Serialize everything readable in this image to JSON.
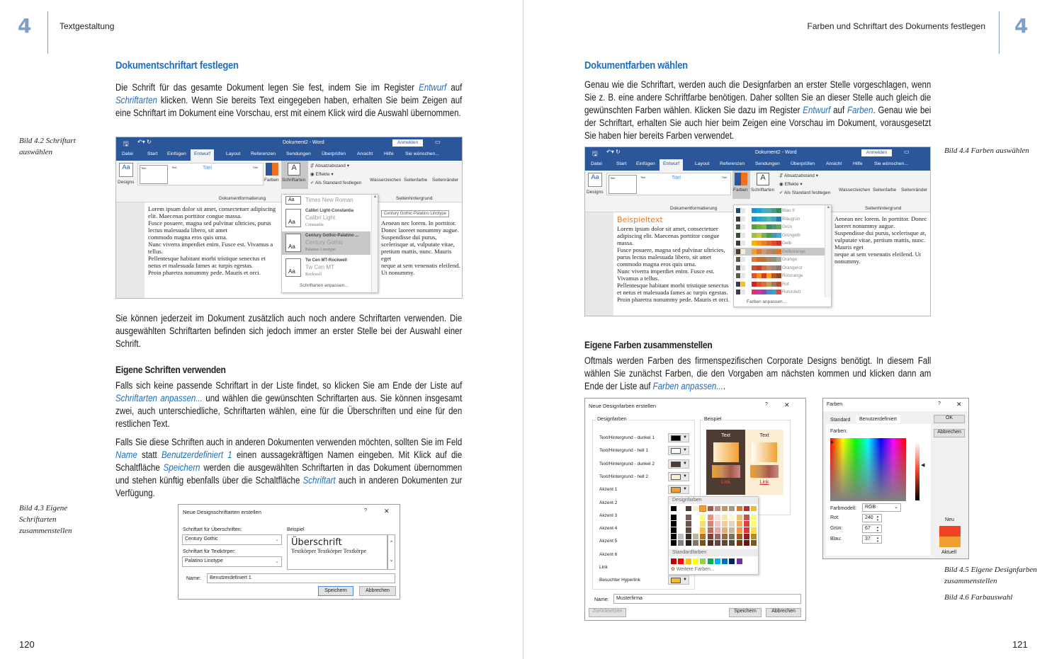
{
  "left_page": {
    "chapter_number": "4",
    "running_head": "Textgestaltung",
    "page_number": "120",
    "heading1": "Dokumentschriftart festlegen",
    "para1": [
      {
        "t": "Die Schrift für das gesamte Dokument legen Sie fest, indem Sie im Register "
      },
      {
        "t": "Entwurf",
        "link": true
      },
      {
        "t": " auf "
      },
      {
        "t": "Schriftarten",
        "link": true
      },
      {
        "t": " klicken. Wenn Sie bereits Text eingegeben haben, erhalten Sie beim Zeigen auf eine Schriftart im Dokument eine Vorschau, erst mit einem Klick wird die Auswahl übernommen."
      }
    ],
    "caption_4_2": "Bild 4.2 Schriftart auswählen",
    "para2": [
      {
        "t": "Sie können jederzeit im Dokument zusätzlich auch noch andere Schriftarten verwenden. Die ausgewählten Schriftarten befinden sich jedoch immer an erster Stelle bei der Auswahl einer Schrift."
      }
    ],
    "heading2": "Eigene Schriften verwenden",
    "para3": [
      {
        "t": "Falls sich keine passende Schriftart in der Liste findet, so klicken Sie am Ende der Liste auf "
      },
      {
        "t": "Schriftarten anpassen...",
        "link": true
      },
      {
        "t": " und wählen die gewünschten Schriftarten aus. Sie können insgesamt zwei, auch unterschiedliche, Schriftarten wählen, eine für die Überschriften und eine für den restlichen Text."
      }
    ],
    "para4": [
      {
        "t": "Falls Sie diese Schriften auch in anderen Dokumenten verwenden möchten, sollten Sie im Feld "
      },
      {
        "t": "Name",
        "link": true
      },
      {
        "t": " statt "
      },
      {
        "t": "Benutzerdefiniert 1",
        "link": true
      },
      {
        "t": " einen aussagekräftigen Namen eingeben. Mit Klick auf die Schaltfläche "
      },
      {
        "t": "Speichern",
        "link": true
      },
      {
        "t": " werden die ausgewählten Schriftarten in das Dokument übernommen und stehen künftig ebenfalls über die Schaltfläche "
      },
      {
        "t": "Schriftart",
        "link": true
      },
      {
        "t": " auch in anderen Dokumenten zur Verfügung."
      }
    ],
    "caption_4_3": "Bild 4.3 Eigene Schriftarten zusammenstellen"
  },
  "right_page": {
    "chapter_number": "4",
    "running_head": "Farben und Schriftart des Dokuments festlegen",
    "page_number": "121",
    "heading1": "Dokumentfarben wählen",
    "para1": [
      {
        "t": "Genau wie die Schriftart, werden auch die Designfarben an erster Stelle vorgeschlagen, wenn Sie z. B. eine andere Schriftfarbe benötigen. Daher sollten Sie an dieser Stelle auch gleich die gewünschten Farben wählen. Klicken Sie dazu im Register "
      },
      {
        "t": "Entwurf",
        "link": true
      },
      {
        "t": " auf "
      },
      {
        "t": "Farben",
        "link": true
      },
      {
        "t": ". Genau wie bei der Schriftart, erhalten Sie auch hier beim Zeigen eine Vorschau im Dokument, vorausgesetzt Sie haben hier bereits Farben verwendet."
      }
    ],
    "caption_4_4": "Bild 4.4 Farben auswählen",
    "heading2": "Eigene Farben zusammenstellen",
    "para2": [
      {
        "t": "Oftmals werden Farben des firmenspezifischen Corporate Designs benötigt. In diesem Fall wählen Sie zunächst Farben, die den Vorgaben am nächsten kommen und klicken dann am Ende der Liste auf "
      },
      {
        "t": "Farben anpassen...",
        "link": true
      },
      {
        "t": "."
      }
    ],
    "caption_4_5": "Bild 4.5 Eigene Designfarben zusammenstellen",
    "caption_4_6": "Bild 4.6 Farbauswahl"
  },
  "word": {
    "title": "Dokument2 - Word",
    "signin": "Anmelden",
    "tabs": [
      "Datei",
      "Start",
      "Einfügen",
      "Entwurf",
      "Layout",
      "Referenzen",
      "Sendungen",
      "Überprüfen",
      "Ansicht",
      "Hilfe",
      "Sie wünschen..."
    ],
    "active_tab": "Entwurf",
    "ribbon": {
      "designs": "Designs",
      "farben": "Farben",
      "schriftarten": "Schriftarten",
      "absatzabstand": "Absatzabstand",
      "effekte": "Effekte",
      "standard": "Als Standard festlegen",
      "wasserzeichen": "Wasserzeichen",
      "seitenfarbe": "Seitenfarbe",
      "seitenraender": "Seitenränder",
      "group1": "Dokumentformatierung",
      "group2": "Seitenhintergrund",
      "gallery_title": "Titel"
    },
    "doc_lines": [
      "Lorem ipsum dolor sit amet, consectetuer adipiscing elit. Maecenas porttitor congue massa.",
      "Fusce posuere, magna sed pulvinar ultricies, purus lectus malesuada libero, sit amet",
      "commodo magna eros quis urna.",
      "Nunc viverra imperdiet enim. Fusce est. Vivamus a tellus.",
      "Pellentesque habitant morbi tristique senectus et netus et malesuada fames ac turpis egestas.",
      "Proin pharetra nonummy pede. Mauris et orci.",
      "Aenean nec lorem. In porttitor. Donec laoreet nonummy augue.",
      "Suspendisse dui purus, scelerisque at, vulputate vitae, pretium mattis, nunc. Mauris eget",
      "neque at sem venenatis eleifend. Ut nonummy."
    ],
    "fonts_menu": {
      "items": [
        {
          "name": "",
          "heading": "Times New Roman",
          "body": ""
        },
        {
          "name": "Calibri Light-Constantia",
          "heading": "Calibri Light",
          "body": "Constantia"
        },
        {
          "name": "Century Gothic-Palatino ...",
          "heading": "Century Gothic",
          "body": "Palatino Linotype",
          "selected": true
        },
        {
          "name": "Tw Cen MT-Rockwell",
          "heading": "Tw Cen MT",
          "body": "Rockwell"
        }
      ],
      "sample": "Aa",
      "customize": "Schriftarten anpassen...",
      "tooltip": "Century Gothic-Palatino Linotype"
    },
    "sample_heading": "Beispieltext",
    "colors_menu": {
      "items": [
        {
          "name": "Blau II",
          "colors": [
            "#1c4a73",
            "#e6e6e6",
            "#1f8fd6",
            "#25a0d0",
            "#4aa8c9",
            "#5aa9a0",
            "#4a9a8a",
            "#3b8a5a"
          ]
        },
        {
          "name": "Blaugrün",
          "colors": [
            "#3a3a3a",
            "#e6e6e6",
            "#1f8fd6",
            "#2aa2c8",
            "#38b0b8",
            "#56b9a8",
            "#4aa0b8",
            "#2a7aa0"
          ]
        },
        {
          "name": "Grün",
          "colors": [
            "#445a44",
            "#e6e6e6",
            "#5aa03a",
            "#6eb044",
            "#8ab83a",
            "#3a8a60",
            "#4a9a70",
            "#6aa060"
          ]
        },
        {
          "name": "Grüngelb",
          "colors": [
            "#3a4a3a",
            "#e6e6e6",
            "#9ac23a",
            "#c8c83a",
            "#7ab050",
            "#4aa040",
            "#3a9aba",
            "#4aa8d8"
          ]
        },
        {
          "name": "Gelb",
          "colors": [
            "#3a3a3a",
            "#e6e6e6",
            "#f4b400",
            "#f09a20",
            "#e88030",
            "#d86a2a",
            "#e04a2a",
            "#c8342a"
          ]
        },
        {
          "name": "Gelborange",
          "colors": [
            "#4a3a30",
            "#f4ecd8",
            "#f0a030",
            "#d87a3a",
            "#c89a7a",
            "#b88a6a",
            "#a08a6a",
            "#d8782a"
          ],
          "selected": true
        },
        {
          "name": "Orange",
          "colors": [
            "#5a5a4a",
            "#e6e6e6",
            "#e87a2a",
            "#d86a2a",
            "#b8783a",
            "#a88a6a",
            "#8a9a7a",
            "#a0a8a0"
          ]
        },
        {
          "name": "Orangerot",
          "colors": [
            "#5a5a5a",
            "#e6e6e6",
            "#d84a2a",
            "#c83a2a",
            "#e06a3a",
            "#c88a6a",
            "#a08a7a",
            "#887a7a"
          ]
        },
        {
          "name": "Rotorange",
          "colors": [
            "#5a5a5a",
            "#e6e6e6",
            "#e0502a",
            "#f08a2a",
            "#d8342a",
            "#f0a02a",
            "#b8542a",
            "#884a2a"
          ]
        },
        {
          "name": "Rot",
          "colors": [
            "#3a3a4a",
            "#f0c030",
            "#c82a2a",
            "#e0502a",
            "#d86a4a",
            "#c89a5a",
            "#9a7a5a",
            "#b84a3a"
          ]
        },
        {
          "name": "Rotviolett",
          "colors": [
            "#3a3a4a",
            "#e6e6e6",
            "#e0346a",
            "#c83aa0",
            "#8a4ab0",
            "#4a8ad8",
            "#3aa0c8",
            "#d84a4a"
          ]
        }
      ],
      "customize": "Farben anpassen..."
    }
  },
  "fonts_dialog": {
    "title": "Neue Designschriftarten erstellen",
    "help": "?",
    "close": "✕",
    "heading_label": "Schriftart für Überschriften:",
    "heading_value": "Century Gothic",
    "body_label": "Schriftart für Textkörper:",
    "body_value": "Palatino Linotype",
    "sample_label": "Beispiel",
    "sample_heading": "Überschrift",
    "sample_body": "Textkörper Textkörper Textkörpe",
    "name_label": "Name:",
    "name_value": "Benutzerdefiniert 1",
    "save": "Speichern",
    "cancel": "Abbrechen"
  },
  "colors_dialog": {
    "title": "Neue Designfarben erstellen",
    "help": "?",
    "close": "✕",
    "group_label": "Designfarben",
    "rows": [
      {
        "label": "Text/Hintergrund - dunkel 1",
        "color": "#000000"
      },
      {
        "label": "Text/Hintergrund - hell 1",
        "color": "#ffffff"
      },
      {
        "label": "Text/Hintergrund - dunkel 2",
        "color": "#4e3b31"
      },
      {
        "label": "Text/Hintergrund - hell 2",
        "color": "#fbeed3"
      },
      {
        "label": "Akzent 1",
        "color": "#f0a030"
      },
      {
        "label": "Akzent 2",
        "color": ""
      },
      {
        "label": "Akzent 3",
        "color": ""
      },
      {
        "label": "Akzent 4",
        "color": ""
      },
      {
        "label": "Akzent 5",
        "color": ""
      },
      {
        "label": "Akzent 6",
        "color": ""
      },
      {
        "label": "Link",
        "color": ""
      },
      {
        "label": "Besuchter Hyperlink",
        "color": "#f4b830"
      }
    ],
    "sample_label": "Beispiel",
    "sample_text": "Text",
    "sample_link": "Link",
    "popup": {
      "theme_label": "Designfarben",
      "theme_colors": [
        "#000000",
        "#ffffff",
        "#4e3b31",
        "#fbeed3",
        "#f0a030",
        "#a8584a",
        "#c88a8a",
        "#c8905a",
        "#a09a80",
        "#d87a2a",
        "#c8282a",
        "#f4b830"
      ],
      "standard_label": "Standardfarben",
      "standard_colors": [
        "#c00000",
        "#ff0000",
        "#ffc000",
        "#ffff00",
        "#92d050",
        "#00b050",
        "#00b0f0",
        "#0070c0",
        "#002060",
        "#7030a0"
      ],
      "more": "Weitere Farben..."
    },
    "name_label": "Name:",
    "name_value": "Musterfirma",
    "reset": "Zurücksetzen",
    "save": "Speichern",
    "cancel": "Abbrechen"
  },
  "picker_dialog": {
    "title": "Farben",
    "help": "?",
    "close": "✕",
    "tabs": [
      "Standard",
      "Benutzerdefiniert"
    ],
    "active_tab": "Benutzerdefiniert",
    "ok": "OK",
    "cancel": "Abbrechen",
    "colors_label": "Farben:",
    "model_label": "Farbmodell:",
    "model_value": "RGB",
    "red_label": "Rot:",
    "red": "240",
    "green_label": "Grün:",
    "green": "67",
    "blue_label": "Blau:",
    "blue": "37",
    "new_label": "Neu",
    "current_label": "Aktuell",
    "new_color": "#f04325",
    "current_color": "#f0a030"
  }
}
